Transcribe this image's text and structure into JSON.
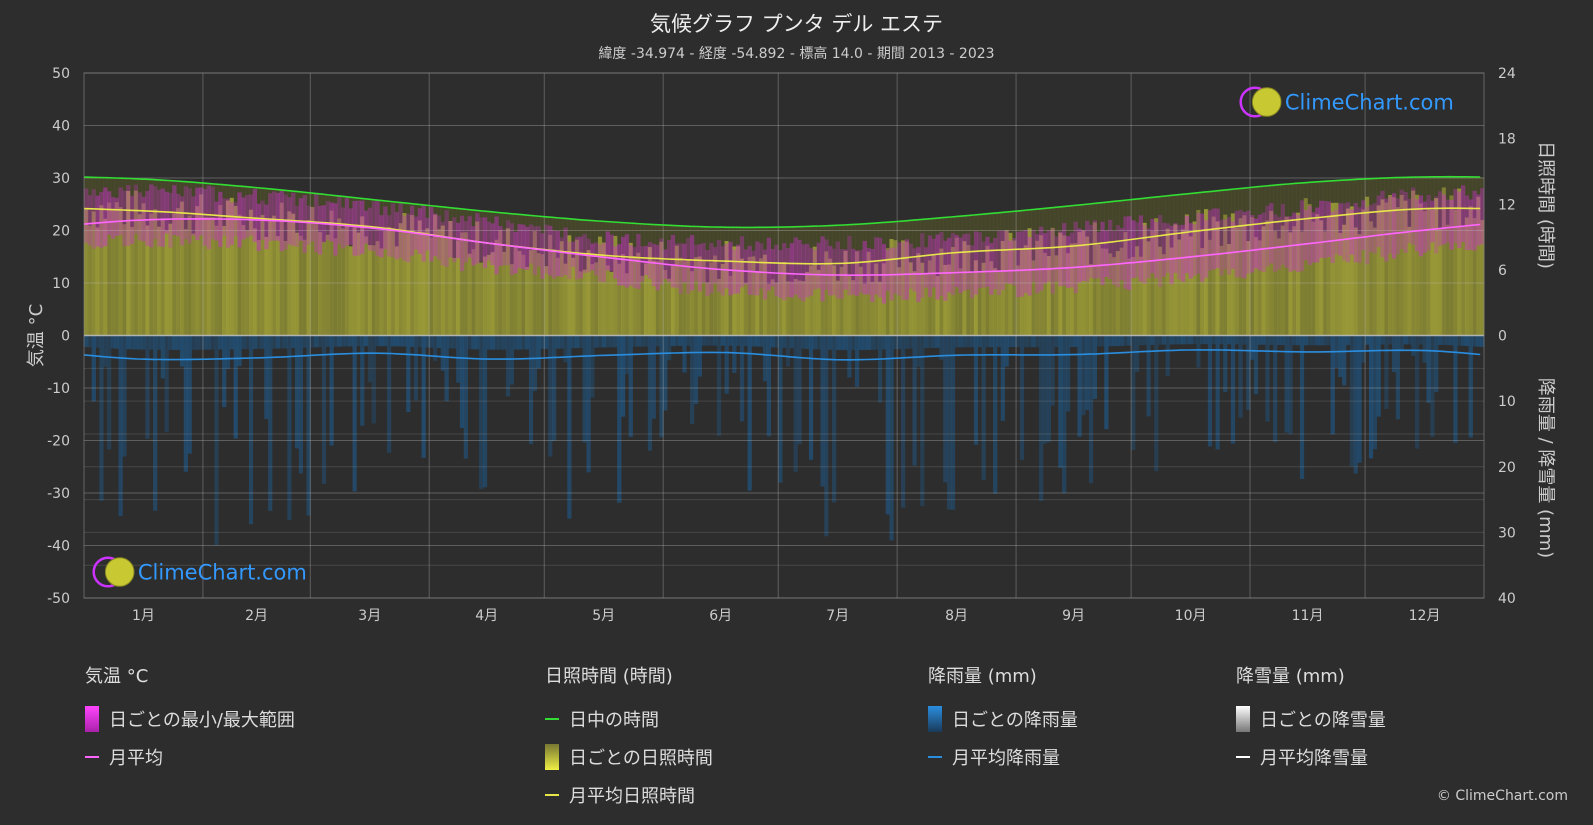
{
  "header": {
    "title": "気候グラフ プンタ デル エステ",
    "subtitle": "緯度 -34.974 - 経度 -54.892 - 標高 14.0 - 期間 2013 - 2023"
  },
  "brand": {
    "logo_text": "ClimeChart.com",
    "copyright": "© ClimeChart.com"
  },
  "colors": {
    "background": "#2d2d2d",
    "plot_background": "#2d2d2d",
    "daylight": "#33dd33",
    "sunshine_fill": "#a8a83a",
    "sunshine_line": "#e6e64a",
    "temp_range": "#cc33cc",
    "temp_avg": "#ff66ff",
    "rain": "#1e5a8c",
    "rain_line": "#2a8ee0",
    "snow_line": "#ffffff",
    "logo": "#3399ff"
  },
  "chart_data": {
    "type": "area",
    "categories": [
      "1月",
      "2月",
      "3月",
      "4月",
      "5月",
      "6月",
      "7月",
      "8月",
      "9月",
      "10月",
      "11月",
      "12月"
    ],
    "left_axis": {
      "label": "気温 °C",
      "ticks": [
        "50",
        "40",
        "30",
        "20",
        "10",
        "0",
        "-10",
        "-20",
        "-30",
        "-40",
        "-50"
      ],
      "range": [
        -50,
        50
      ]
    },
    "right_axis_top": {
      "label": "日照時間 (時間)",
      "ticks": [
        "24",
        "18",
        "12",
        "6",
        "0"
      ],
      "range": [
        0,
        24
      ]
    },
    "right_axis_bottom": {
      "label": "降雨量 / 降雪量 (mm)",
      "ticks": [
        "10",
        "20",
        "30",
        "40"
      ],
      "range": [
        0,
        40
      ]
    },
    "grid": true,
    "series": [
      {
        "name": "日中の時間",
        "unit": "hours",
        "values": [
          14.3,
          13.5,
          12.4,
          11.3,
          10.4,
          9.9,
          10.1,
          10.9,
          11.9,
          13.0,
          14.0,
          14.5
        ]
      },
      {
        "name": "月平均日照時間",
        "unit": "hours",
        "values": [
          11.4,
          10.7,
          9.9,
          8.4,
          7.3,
          6.8,
          6.6,
          7.6,
          8.2,
          9.5,
          10.7,
          11.6
        ]
      },
      {
        "name": "月平均",
        "unit": "°C",
        "values": [
          22.0,
          22.0,
          20.4,
          17.5,
          14.8,
          12.5,
          11.5,
          12.0,
          13.0,
          15.0,
          17.5,
          20.1
        ]
      },
      {
        "name": "日ごとの最小/最大範囲 (max)",
        "unit": "°C",
        "values": [
          27.5,
          26.5,
          24.5,
          21.5,
          18.5,
          17.5,
          17.5,
          18.5,
          20.5,
          22.5,
          24.5,
          27.0
        ]
      },
      {
        "name": "日ごとの最小/最大範囲 (min)",
        "unit": "°C",
        "values": [
          18.0,
          17.5,
          16.0,
          13.0,
          11.0,
          8.5,
          7.5,
          8.0,
          9.5,
          11.0,
          13.5,
          16.5
        ]
      },
      {
        "name": "月平均降雨量",
        "unit": "mm",
        "values": [
          3.6,
          3.4,
          2.7,
          3.6,
          3.0,
          2.6,
          3.7,
          3.0,
          2.9,
          2.2,
          2.5,
          2.3
        ]
      },
      {
        "name": "月平均降雪量",
        "unit": "mm",
        "values": [
          0,
          0,
          0,
          0,
          0,
          0,
          0,
          0,
          0,
          0,
          0,
          0
        ]
      }
    ]
  },
  "legend": {
    "temperature": {
      "heading": "気温 °C",
      "items": [
        "日ごとの最小/最大範囲",
        "月平均"
      ]
    },
    "sunshine": {
      "heading": "日照時間 (時間)",
      "items": [
        "日中の時間",
        "日ごとの日照時間",
        "月平均日照時間"
      ]
    },
    "rain": {
      "heading": "降雨量 (mm)",
      "items": [
        "日ごとの降雨量",
        "月平均降雨量"
      ]
    },
    "snow": {
      "heading": "降雪量 (mm)",
      "items": [
        "日ごとの降雪量",
        "月平均降雪量"
      ]
    }
  }
}
